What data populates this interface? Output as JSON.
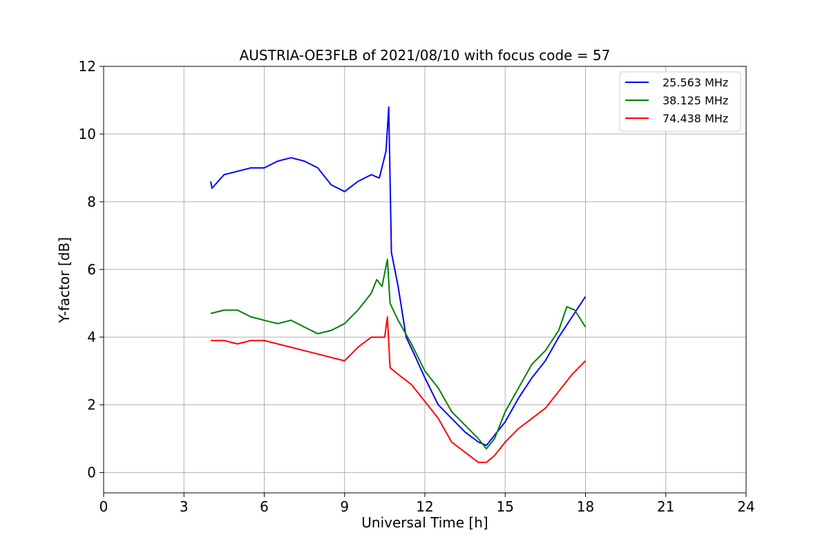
{
  "chart_data": {
    "type": "line",
    "title": "AUSTRIA-OE3FLB of 2021/08/10 with focus code = 57",
    "xlabel": "Universal Time [h]",
    "ylabel": "Y-factor [dB]",
    "xlim": [
      0,
      24
    ],
    "ylim": [
      -0.6,
      12
    ],
    "xticks": [
      0,
      3,
      6,
      9,
      12,
      15,
      18,
      21,
      24
    ],
    "yticks": [
      0,
      2,
      4,
      6,
      8,
      10,
      12
    ],
    "grid": true,
    "legend_position": "top-right",
    "series": [
      {
        "name": "25.563 MHz",
        "color": "#0000ff",
        "x": [
          4.0,
          4.05,
          4.5,
          5.0,
          5.5,
          6.0,
          6.5,
          7.0,
          7.5,
          8.0,
          8.5,
          9.0,
          9.5,
          10.0,
          10.3,
          10.55,
          10.65,
          10.75,
          11.0,
          11.3,
          11.6,
          12.0,
          12.5,
          13.0,
          13.5,
          14.0,
          14.3,
          14.6,
          15.0,
          15.5,
          16.0,
          16.5,
          17.0,
          17.5,
          18.0
        ],
        "y": [
          8.6,
          8.4,
          8.8,
          8.9,
          9.0,
          9.0,
          9.2,
          9.3,
          9.2,
          9.0,
          8.5,
          8.3,
          8.6,
          8.8,
          8.7,
          9.5,
          10.8,
          6.5,
          5.5,
          4.0,
          3.5,
          2.8,
          2.0,
          1.6,
          1.2,
          0.9,
          0.8,
          1.1,
          1.5,
          2.2,
          2.8,
          3.3,
          4.0,
          4.6,
          5.2
        ]
      },
      {
        "name": "38.125 MHz",
        "color": "#008000",
        "x": [
          4.0,
          4.5,
          5.0,
          5.5,
          6.0,
          6.5,
          7.0,
          7.5,
          8.0,
          8.5,
          9.0,
          9.5,
          10.0,
          10.2,
          10.4,
          10.6,
          10.7,
          11.0,
          11.5,
          12.0,
          12.5,
          13.0,
          13.5,
          14.0,
          14.3,
          14.6,
          15.0,
          15.5,
          16.0,
          16.5,
          17.0,
          17.3,
          17.6,
          18.0
        ],
        "y": [
          4.7,
          4.8,
          4.8,
          4.6,
          4.5,
          4.4,
          4.5,
          4.3,
          4.1,
          4.2,
          4.4,
          4.8,
          5.3,
          5.7,
          5.5,
          6.3,
          5.0,
          4.5,
          3.8,
          3.0,
          2.5,
          1.8,
          1.4,
          1.0,
          0.7,
          1.0,
          1.8,
          2.5,
          3.2,
          3.6,
          4.2,
          4.9,
          4.8,
          4.3
        ]
      },
      {
        "name": "74.438 MHz",
        "color": "#ff0000",
        "x": [
          4.0,
          4.5,
          5.0,
          5.5,
          6.0,
          6.5,
          7.0,
          7.5,
          8.0,
          8.5,
          9.0,
          9.5,
          10.0,
          10.5,
          10.6,
          10.7,
          11.0,
          11.5,
          12.0,
          12.5,
          13.0,
          13.5,
          14.0,
          14.3,
          14.6,
          15.0,
          15.5,
          16.0,
          16.5,
          17.0,
          17.5,
          18.0
        ],
        "y": [
          3.9,
          3.9,
          3.8,
          3.9,
          3.9,
          3.8,
          3.7,
          3.6,
          3.5,
          3.4,
          3.3,
          3.7,
          4.0,
          4.0,
          4.6,
          3.1,
          2.9,
          2.6,
          2.1,
          1.6,
          0.9,
          0.6,
          0.3,
          0.3,
          0.5,
          0.9,
          1.3,
          1.6,
          1.9,
          2.4,
          2.9,
          3.3
        ]
      }
    ]
  }
}
